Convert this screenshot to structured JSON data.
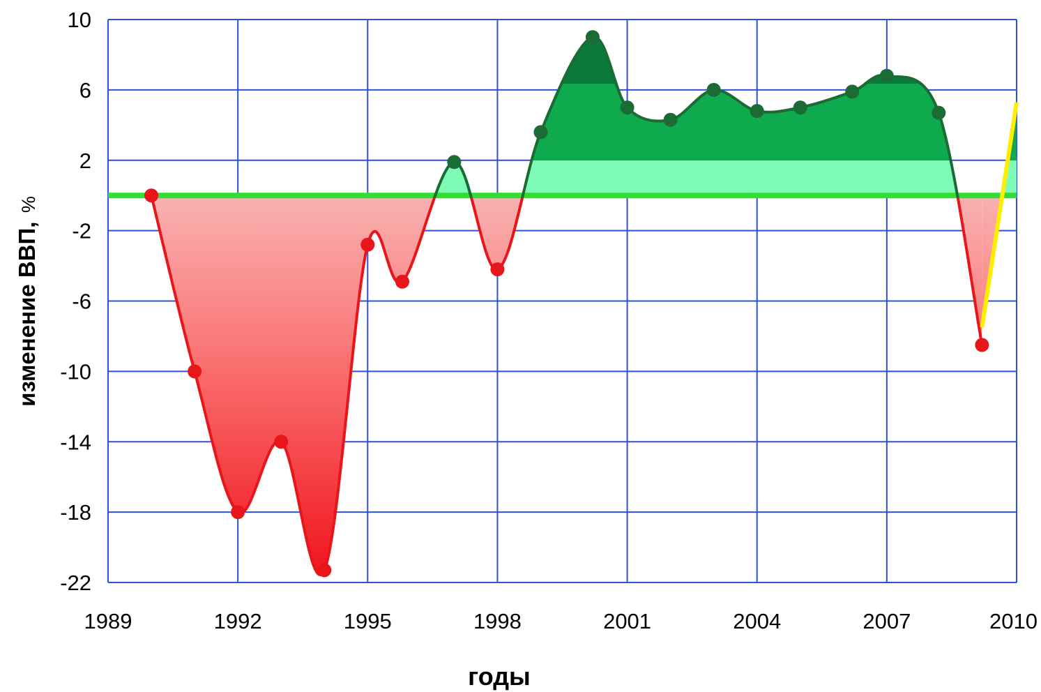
{
  "chart_data": {
    "type": "area",
    "title": "",
    "xlabel": "годы",
    "ylabel_main": "изменение ВВП,",
    "ylabel_unit": "%",
    "xlim": [
      1989,
      2010
    ],
    "ylim": [
      -22,
      10
    ],
    "x_ticks": [
      1989,
      1992,
      1995,
      1998,
      2001,
      2004,
      2007,
      2010
    ],
    "y_ticks": [
      10,
      6,
      2,
      -2,
      -6,
      -10,
      -14,
      -18,
      -22
    ],
    "baseline": 0,
    "grid": true,
    "series": [
      {
        "x": [
          1990,
          1991,
          1992,
          1993,
          1994,
          1995,
          1995.8,
          1997,
          1998,
          1999,
          2000.2,
          2001,
          2002,
          2003,
          2004,
          2005,
          2006.2,
          2007,
          2008.2,
          2009.2
        ],
        "y": [
          0,
          -10,
          -18,
          -14,
          -21.3,
          -2.8,
          -4.9,
          1.9,
          -4.2,
          3.6,
          9.0,
          5.0,
          4.3,
          6.0,
          4.8,
          5.0,
          5.9,
          6.8,
          4.7,
          -8.5
        ]
      },
      {
        "x": [
          2009.2,
          2010
        ],
        "y": [
          -7.5,
          5.3
        ]
      }
    ],
    "colors": {
      "negative_line": "#e8161b",
      "positive_line": "#1a6b34",
      "forecast_line": "#ffee00",
      "baseline": "#33dd33",
      "grid": "#2f50d8",
      "neg_light": "#f9b1b1",
      "neg_mid": "#fb7d7d",
      "neg_dark": "#f0121a",
      "pos_light": "#7dfbb7",
      "pos_mid": "#0eaa4d",
      "pos_dark": "#0a7a3c"
    }
  }
}
